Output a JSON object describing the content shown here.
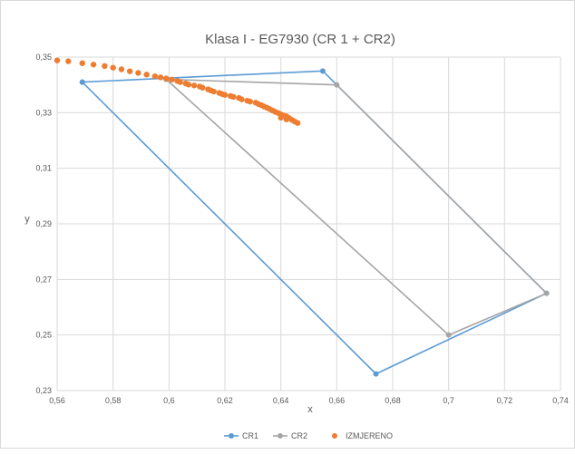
{
  "chart_data": {
    "type": "scatter",
    "title": "Klasa I - EG7930 (CR 1 + CR2)",
    "xlabel": "x",
    "ylabel": "y",
    "xlim": [
      0.56,
      0.74
    ],
    "ylim": [
      0.23,
      0.35
    ],
    "x_ticks": [
      "0,56",
      "0,58",
      "0,6",
      "0,62",
      "0,64",
      "0,66",
      "0,68",
      "0,7",
      "0,72",
      "0,74"
    ],
    "y_ticks": [
      "0,23",
      "0,25",
      "0,27",
      "0,29",
      "0,31",
      "0,33",
      "0,35"
    ],
    "x_tick_values": [
      0.56,
      0.58,
      0.6,
      0.62,
      0.64,
      0.66,
      0.68,
      0.7,
      0.72,
      0.74
    ],
    "y_tick_values": [
      0.23,
      0.25,
      0.27,
      0.29,
      0.31,
      0.33,
      0.35
    ],
    "grid": true,
    "legend_position": "bottom",
    "series": [
      {
        "name": "CR1",
        "color": "#5b9bd5",
        "style": "line-markers",
        "points": [
          [
            0.569,
            0.341
          ],
          [
            0.655,
            0.345
          ],
          [
            0.735,
            0.265
          ],
          [
            0.674,
            0.236
          ],
          [
            0.569,
            0.341
          ]
        ]
      },
      {
        "name": "CR2",
        "color": "#a5a5a5",
        "style": "line-markers",
        "points": [
          [
            0.599,
            0.342
          ],
          [
            0.66,
            0.34
          ],
          [
            0.735,
            0.265
          ],
          [
            0.7,
            0.25
          ],
          [
            0.599,
            0.342
          ]
        ]
      },
      {
        "name": "IZMJERENO",
        "color": "#ed7d31",
        "style": "markers",
        "points": [
          [
            0.56,
            0.3488
          ],
          [
            0.564,
            0.3485
          ],
          [
            0.569,
            0.3478
          ],
          [
            0.573,
            0.3473
          ],
          [
            0.577,
            0.3468
          ],
          [
            0.58,
            0.3462
          ],
          [
            0.583,
            0.3456
          ],
          [
            0.586,
            0.3449
          ],
          [
            0.589,
            0.3443
          ],
          [
            0.592,
            0.3437
          ],
          [
            0.595,
            0.3431
          ],
          [
            0.597,
            0.3427
          ],
          [
            0.599,
            0.3423
          ],
          [
            0.601,
            0.3419
          ],
          [
            0.603,
            0.3414
          ],
          [
            0.604,
            0.341
          ],
          [
            0.606,
            0.3405
          ],
          [
            0.607,
            0.3401
          ],
          [
            0.609,
            0.3398
          ],
          [
            0.611,
            0.3394
          ],
          [
            0.612,
            0.339
          ],
          [
            0.614,
            0.3384
          ],
          [
            0.615,
            0.338
          ],
          [
            0.616,
            0.3376
          ],
          [
            0.618,
            0.3371
          ],
          [
            0.619,
            0.3367
          ],
          [
            0.62,
            0.3364
          ],
          [
            0.622,
            0.336
          ],
          [
            0.623,
            0.3357
          ],
          [
            0.625,
            0.3353
          ],
          [
            0.626,
            0.3348
          ],
          [
            0.628,
            0.3343
          ],
          [
            0.629,
            0.334
          ],
          [
            0.631,
            0.3336
          ],
          [
            0.632,
            0.3331
          ],
          [
            0.633,
            0.3327
          ],
          [
            0.634,
            0.3322
          ],
          [
            0.635,
            0.3318
          ],
          [
            0.636,
            0.3313
          ],
          [
            0.637,
            0.3308
          ],
          [
            0.638,
            0.3303
          ],
          [
            0.639,
            0.3299
          ],
          [
            0.64,
            0.3294
          ],
          [
            0.641,
            0.329
          ],
          [
            0.642,
            0.3287
          ],
          [
            0.643,
            0.328
          ],
          [
            0.644,
            0.3274
          ],
          [
            0.645,
            0.3268
          ],
          [
            0.646,
            0.3263
          ],
          [
            0.64,
            0.3282
          ],
          [
            0.642,
            0.3276
          ]
        ]
      }
    ]
  }
}
